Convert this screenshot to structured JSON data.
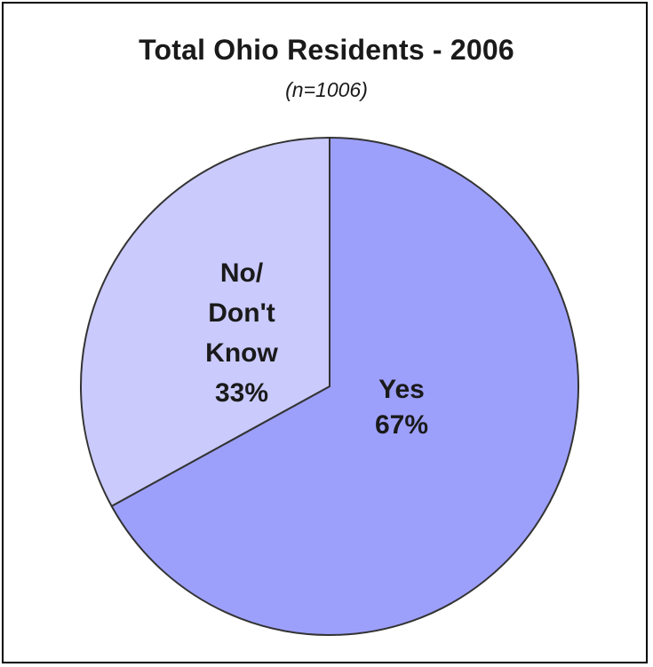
{
  "chart_data": {
    "type": "pie",
    "title": "Total Ohio Residents - 2006",
    "subtitle": "(n=1006)",
    "slices": [
      {
        "label_lines": [
          "Yes",
          "67%"
        ],
        "category": "Yes",
        "value": 67,
        "color": "#9da0fb"
      },
      {
        "label_lines": [
          "No/",
          "Don't",
          "Know",
          "33%"
        ],
        "category": "No/ Don't Know",
        "value": 33,
        "color": "#cacafd"
      }
    ],
    "start": "12 o'clock",
    "direction": "clockwise",
    "outline_color": "#333333"
  }
}
